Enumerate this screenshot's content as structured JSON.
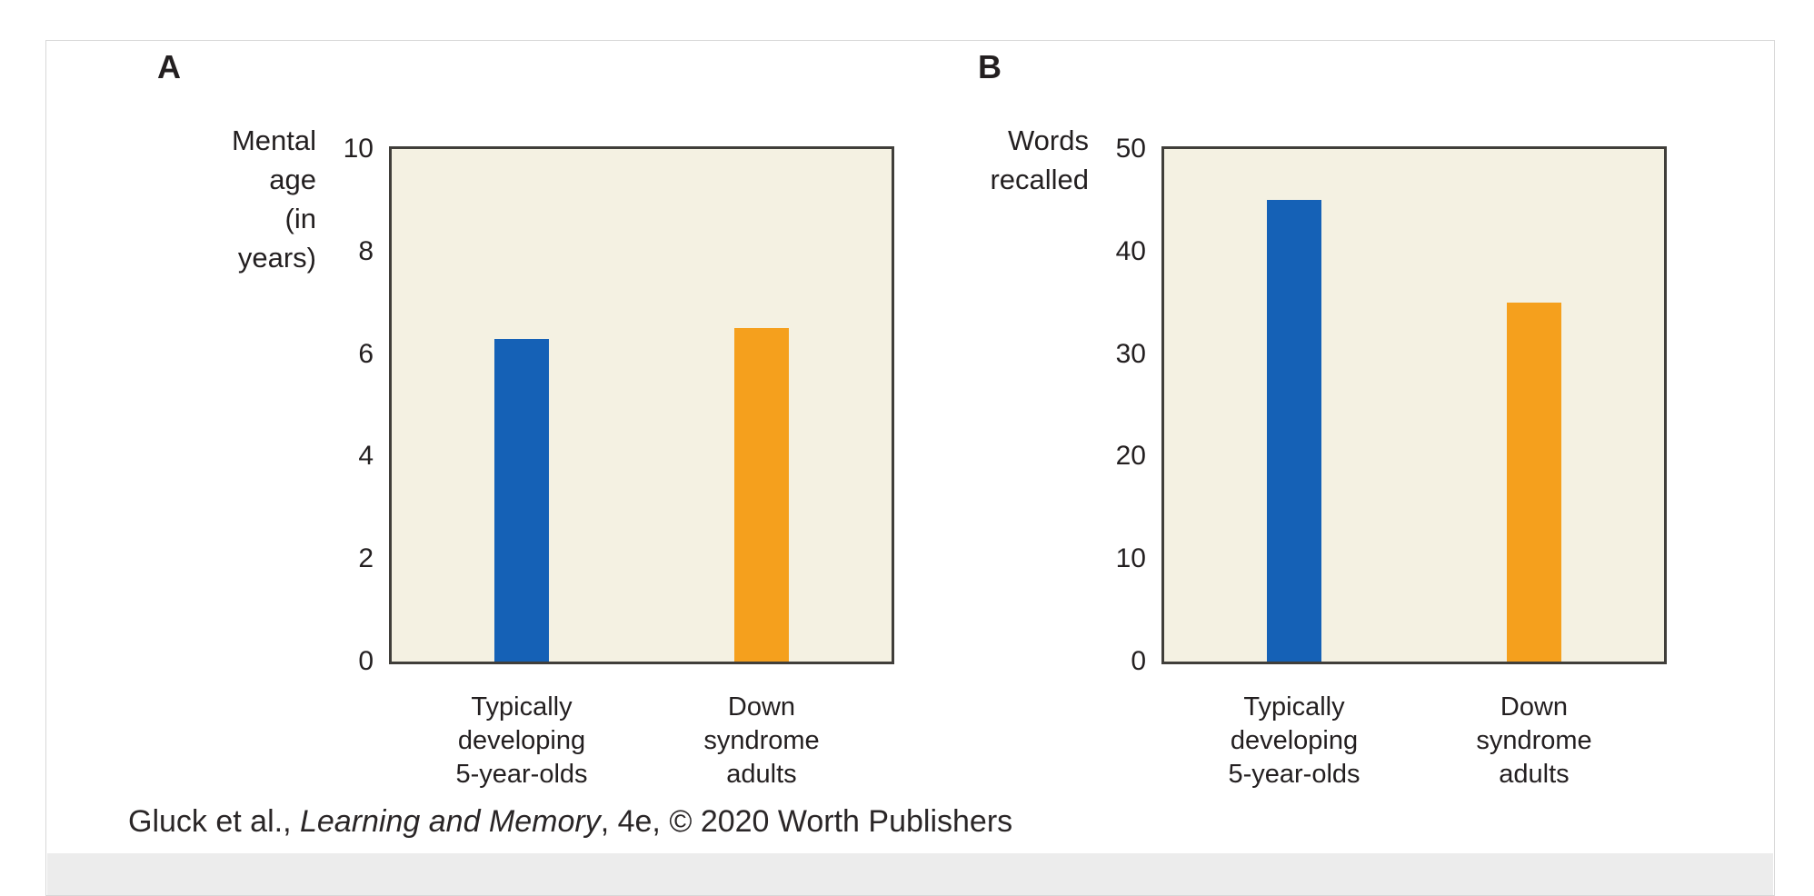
{
  "caption": {
    "prefix": "Gluck et al., ",
    "title_italic": "Learning and Memory",
    "suffix": ", 4e, © 2020 Worth Publishers"
  },
  "colors": {
    "bar_blue": "#1561b6",
    "bar_orange": "#f5a01d",
    "plot_background": "#f4f1e2",
    "plot_border": "#403e3a",
    "card_border": "#d8d8d8",
    "bottom_band": "#ececec",
    "text": "#231f20"
  },
  "chart_data": [
    {
      "type": "bar",
      "panel_label": "A",
      "title": "",
      "xlabel": "",
      "ylabel": "Mental age\n(in years)",
      "categories": [
        "Typically\ndeveloping\n5-year-olds",
        "Down\nsyndrome\nadults"
      ],
      "values": [
        6.3,
        6.5
      ],
      "bar_colors": [
        "#1561b6",
        "#f5a01d"
      ],
      "ylim": [
        0,
        10
      ],
      "yticks": [
        0,
        2,
        4,
        6,
        8,
        10
      ],
      "grid": false,
      "legend": false
    },
    {
      "type": "bar",
      "panel_label": "B",
      "title": "",
      "xlabel": "",
      "ylabel": "Words\nrecalled",
      "categories": [
        "Typically\ndeveloping\n5-year-olds",
        "Down\nsyndrome\nadults"
      ],
      "values": [
        45,
        35
      ],
      "bar_colors": [
        "#1561b6",
        "#f5a01d"
      ],
      "ylim": [
        0,
        50
      ],
      "yticks": [
        0,
        10,
        20,
        30,
        40,
        50
      ],
      "grid": false,
      "legend": false
    }
  ]
}
